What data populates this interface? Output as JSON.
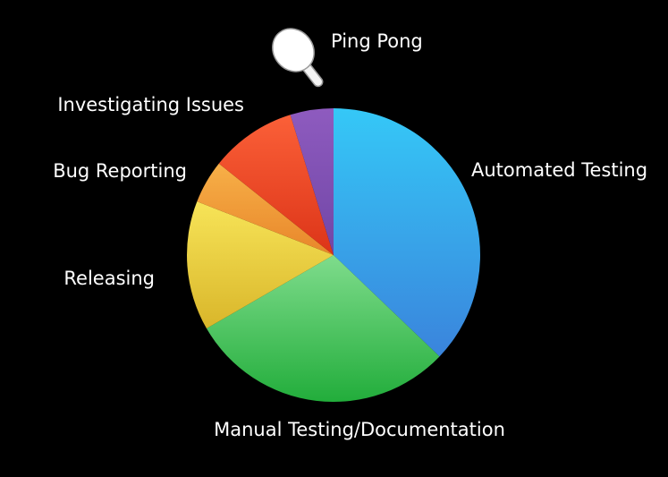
{
  "chart_data": {
    "type": "pie",
    "title": "",
    "slices": [
      {
        "label": "Automated Testing",
        "value": 39,
        "color_top": "#35c8f7",
        "color_bottom": "#3a84dc"
      },
      {
        "label": "Manual Testing/Documentation",
        "value": 31,
        "color_top": "#7fdc8c",
        "color_bottom": "#22ad3b"
      },
      {
        "label": "Releasing",
        "value": 15,
        "color_top": "#f7e458",
        "color_bottom": "#d9b62a"
      },
      {
        "label": "Bug Reporting",
        "value": 5,
        "color_top": "#f7b048",
        "color_bottom": "#e8862a"
      },
      {
        "label": "Investigating Issues",
        "value": 10,
        "color_top": "#fb6038",
        "color_bottom": "#dc3418"
      },
      {
        "label": "Ping Pong",
        "value": 5,
        "color_top": "#8e5bbf",
        "color_bottom": "#7146a6"
      }
    ],
    "start_angle": "12 o'clock",
    "direction": "clockwise",
    "legend": "none",
    "annotations": [
      {
        "slice": "Ping Pong",
        "icon": "ping-pong-paddle-icon"
      }
    ]
  }
}
